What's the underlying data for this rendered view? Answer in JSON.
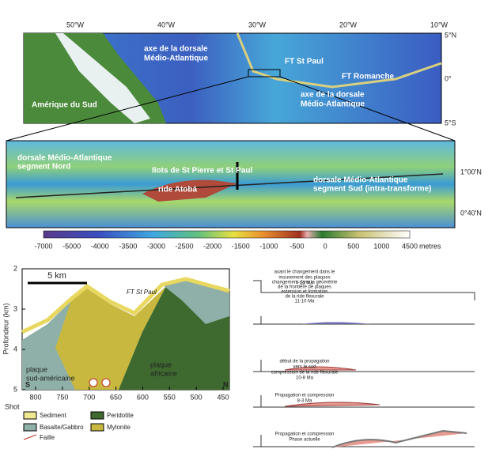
{
  "top_map": {
    "longitudes": [
      "50°W",
      "40°W",
      "30°W",
      "20°W",
      "10°W"
    ],
    "latitudes": [
      "5°N",
      "0°",
      "5°S"
    ],
    "labels": [
      {
        "lines": [
          "axe de la dorsale",
          "Médio-Atlantique"
        ]
      },
      {
        "lines": [
          "FT St Paul"
        ]
      },
      {
        "lines": [
          "FT Romanche"
        ]
      },
      {
        "lines": [
          "axe de la dorsale",
          "Médio-Atlantique"
        ]
      },
      {
        "lines": [
          "Amérique du Sud"
        ]
      }
    ]
  },
  "detail_map": {
    "latitudes": [
      "1°00'N",
      "0°40'N"
    ],
    "labels": [
      {
        "lines": [
          "dorsale Médio-Atlantique",
          "segment Nord"
        ]
      },
      {
        "lines": [
          "Ilots de St Pierre et St Paul"
        ]
      },
      {
        "lines": [
          "ride Atobá"
        ]
      },
      {
        "lines": [
          "dorsale Médio-Atlantique",
          "segment Sud (intra-transforme)"
        ]
      }
    ]
  },
  "colorbar": {
    "ticks": [
      -7000,
      -5000,
      -4000,
      -3500,
      -3000,
      -2500,
      -2000,
      -1500,
      -1000,
      -500,
      0,
      500,
      1000,
      4500
    ],
    "unit": "metres"
  },
  "cross_section": {
    "y_label": "Profondeur (km)",
    "yticks": [
      2,
      3,
      4,
      5
    ],
    "x_label": "Shot",
    "xticks": [
      800,
      750,
      700,
      650,
      600,
      550,
      500,
      450
    ],
    "scale": "5 km",
    "fault_label": "FT St Paul",
    "plates": [
      {
        "lines": [
          "plaque",
          "sud-américaine"
        ]
      },
      {
        "lines": [
          "plaque",
          "africaine"
        ]
      }
    ],
    "south": "S",
    "north": "N"
  },
  "legend": [
    "Sediment",
    "Peridotite",
    "Basalte/Gabbro",
    "Mylonite",
    "Faille"
  ],
  "evolution": [
    {
      "lines": [
        "avant le changement dans le",
        "mouvement des plaques",
        "> 11 Ma"
      ]
    },
    {
      "lines": [
        "changement dans la géométrie",
        "de la frontière de plaques",
        "extension et formation",
        "de la ride flexurale",
        "11-10 Ma"
      ]
    },
    {
      "lines": [
        "début de la propagation",
        "vers le sud",
        "compression de la ride flexurale",
        "10-8 Ma"
      ]
    },
    {
      "lines": [
        "Propagation et compression",
        "8-3 Ma"
      ]
    },
    {
      "lines": [
        "Propagation et compression",
        "Phase actuelle"
      ]
    }
  ]
}
